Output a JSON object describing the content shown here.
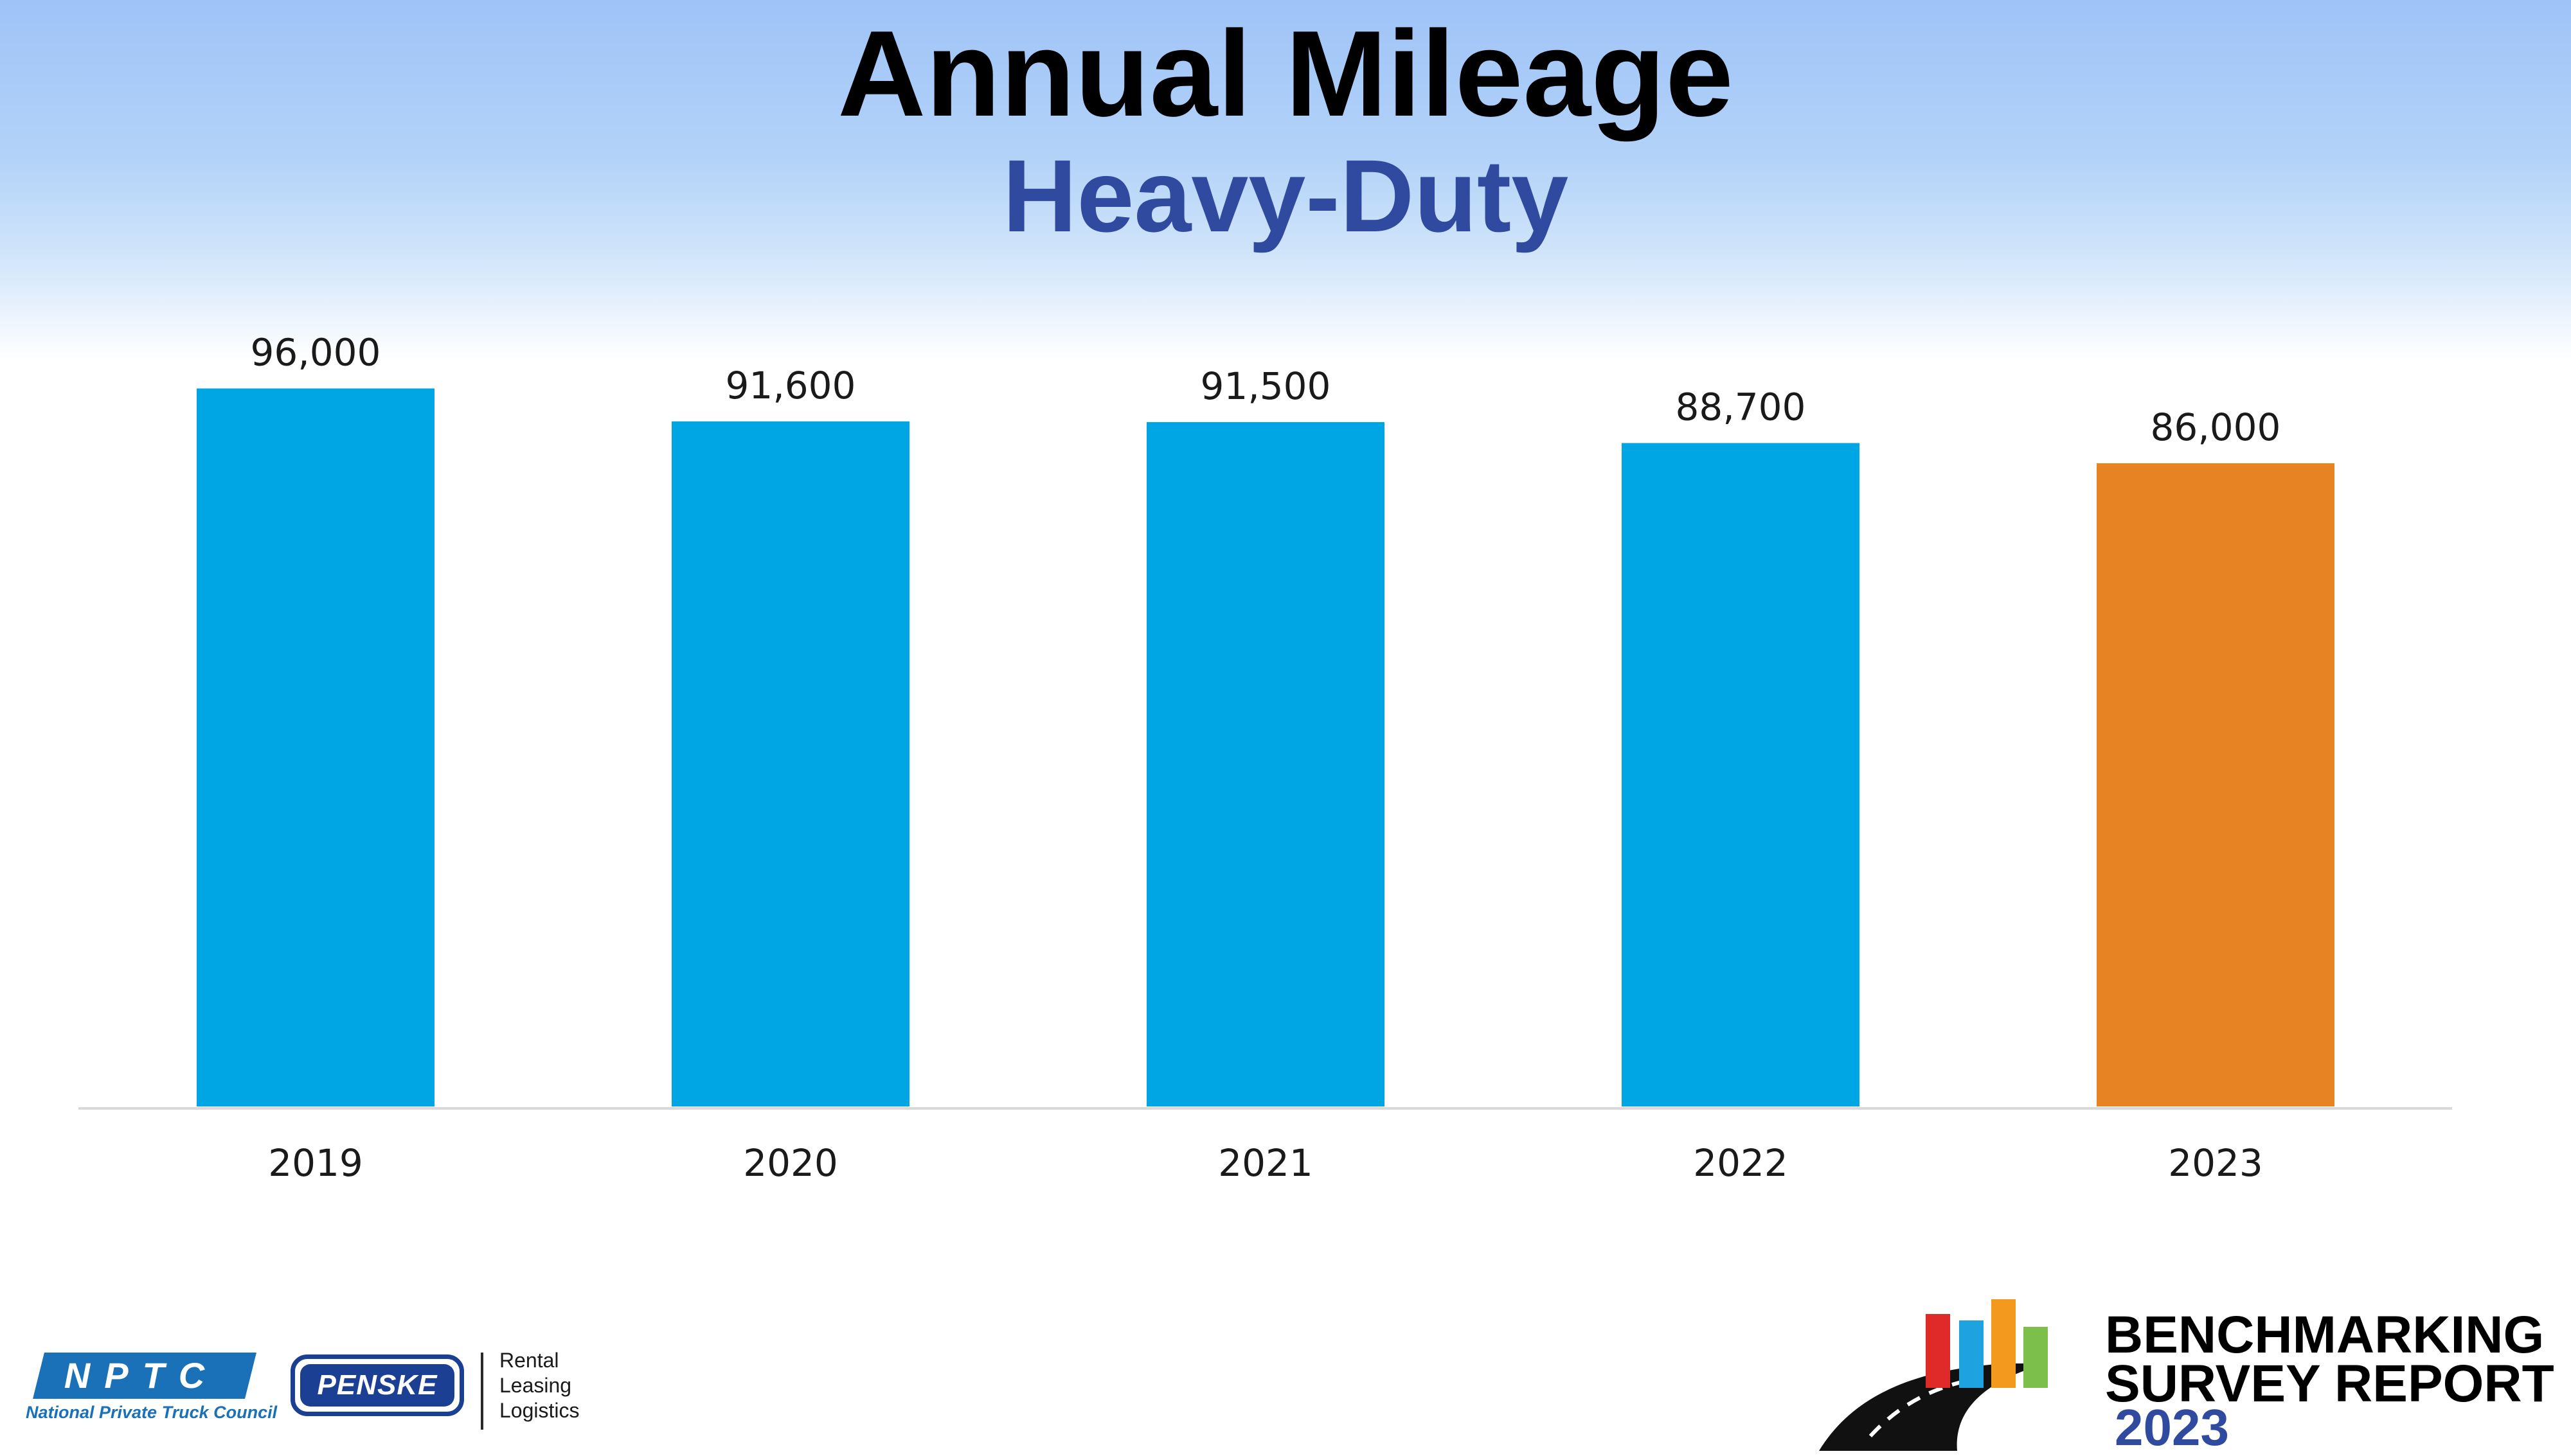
{
  "header": {
    "title": "Annual Mileage",
    "subtitle": "Heavy-Duty"
  },
  "chart_data": {
    "type": "bar",
    "title": "Annual Mileage",
    "subtitle": "Heavy-Duty",
    "xlabel": "",
    "ylabel": "",
    "categories": [
      "2019",
      "2020",
      "2021",
      "2022",
      "2023"
    ],
    "values": [
      96000,
      91600,
      91500,
      88700,
      86000
    ],
    "value_labels": [
      "96,000",
      "91,600",
      "91,500",
      "88,700",
      "86,000"
    ],
    "ylim": [
      0,
      100000
    ],
    "grid": false,
    "legend": "none",
    "colors": [
      "#00a6e3",
      "#00a6e3",
      "#00a6e3",
      "#00a6e3",
      "#e88323"
    ]
  },
  "footer": {
    "nptc": {
      "letters": "NPTC",
      "name": "National Private Truck Council"
    },
    "penske": {
      "name": "PENSKE",
      "tagline": [
        "Rental",
        "Leasing",
        "Logistics"
      ]
    },
    "benchmarking": {
      "line1": "BENCHMARKING",
      "line2": "SURVEY REPORT",
      "year": "2023"
    }
  }
}
